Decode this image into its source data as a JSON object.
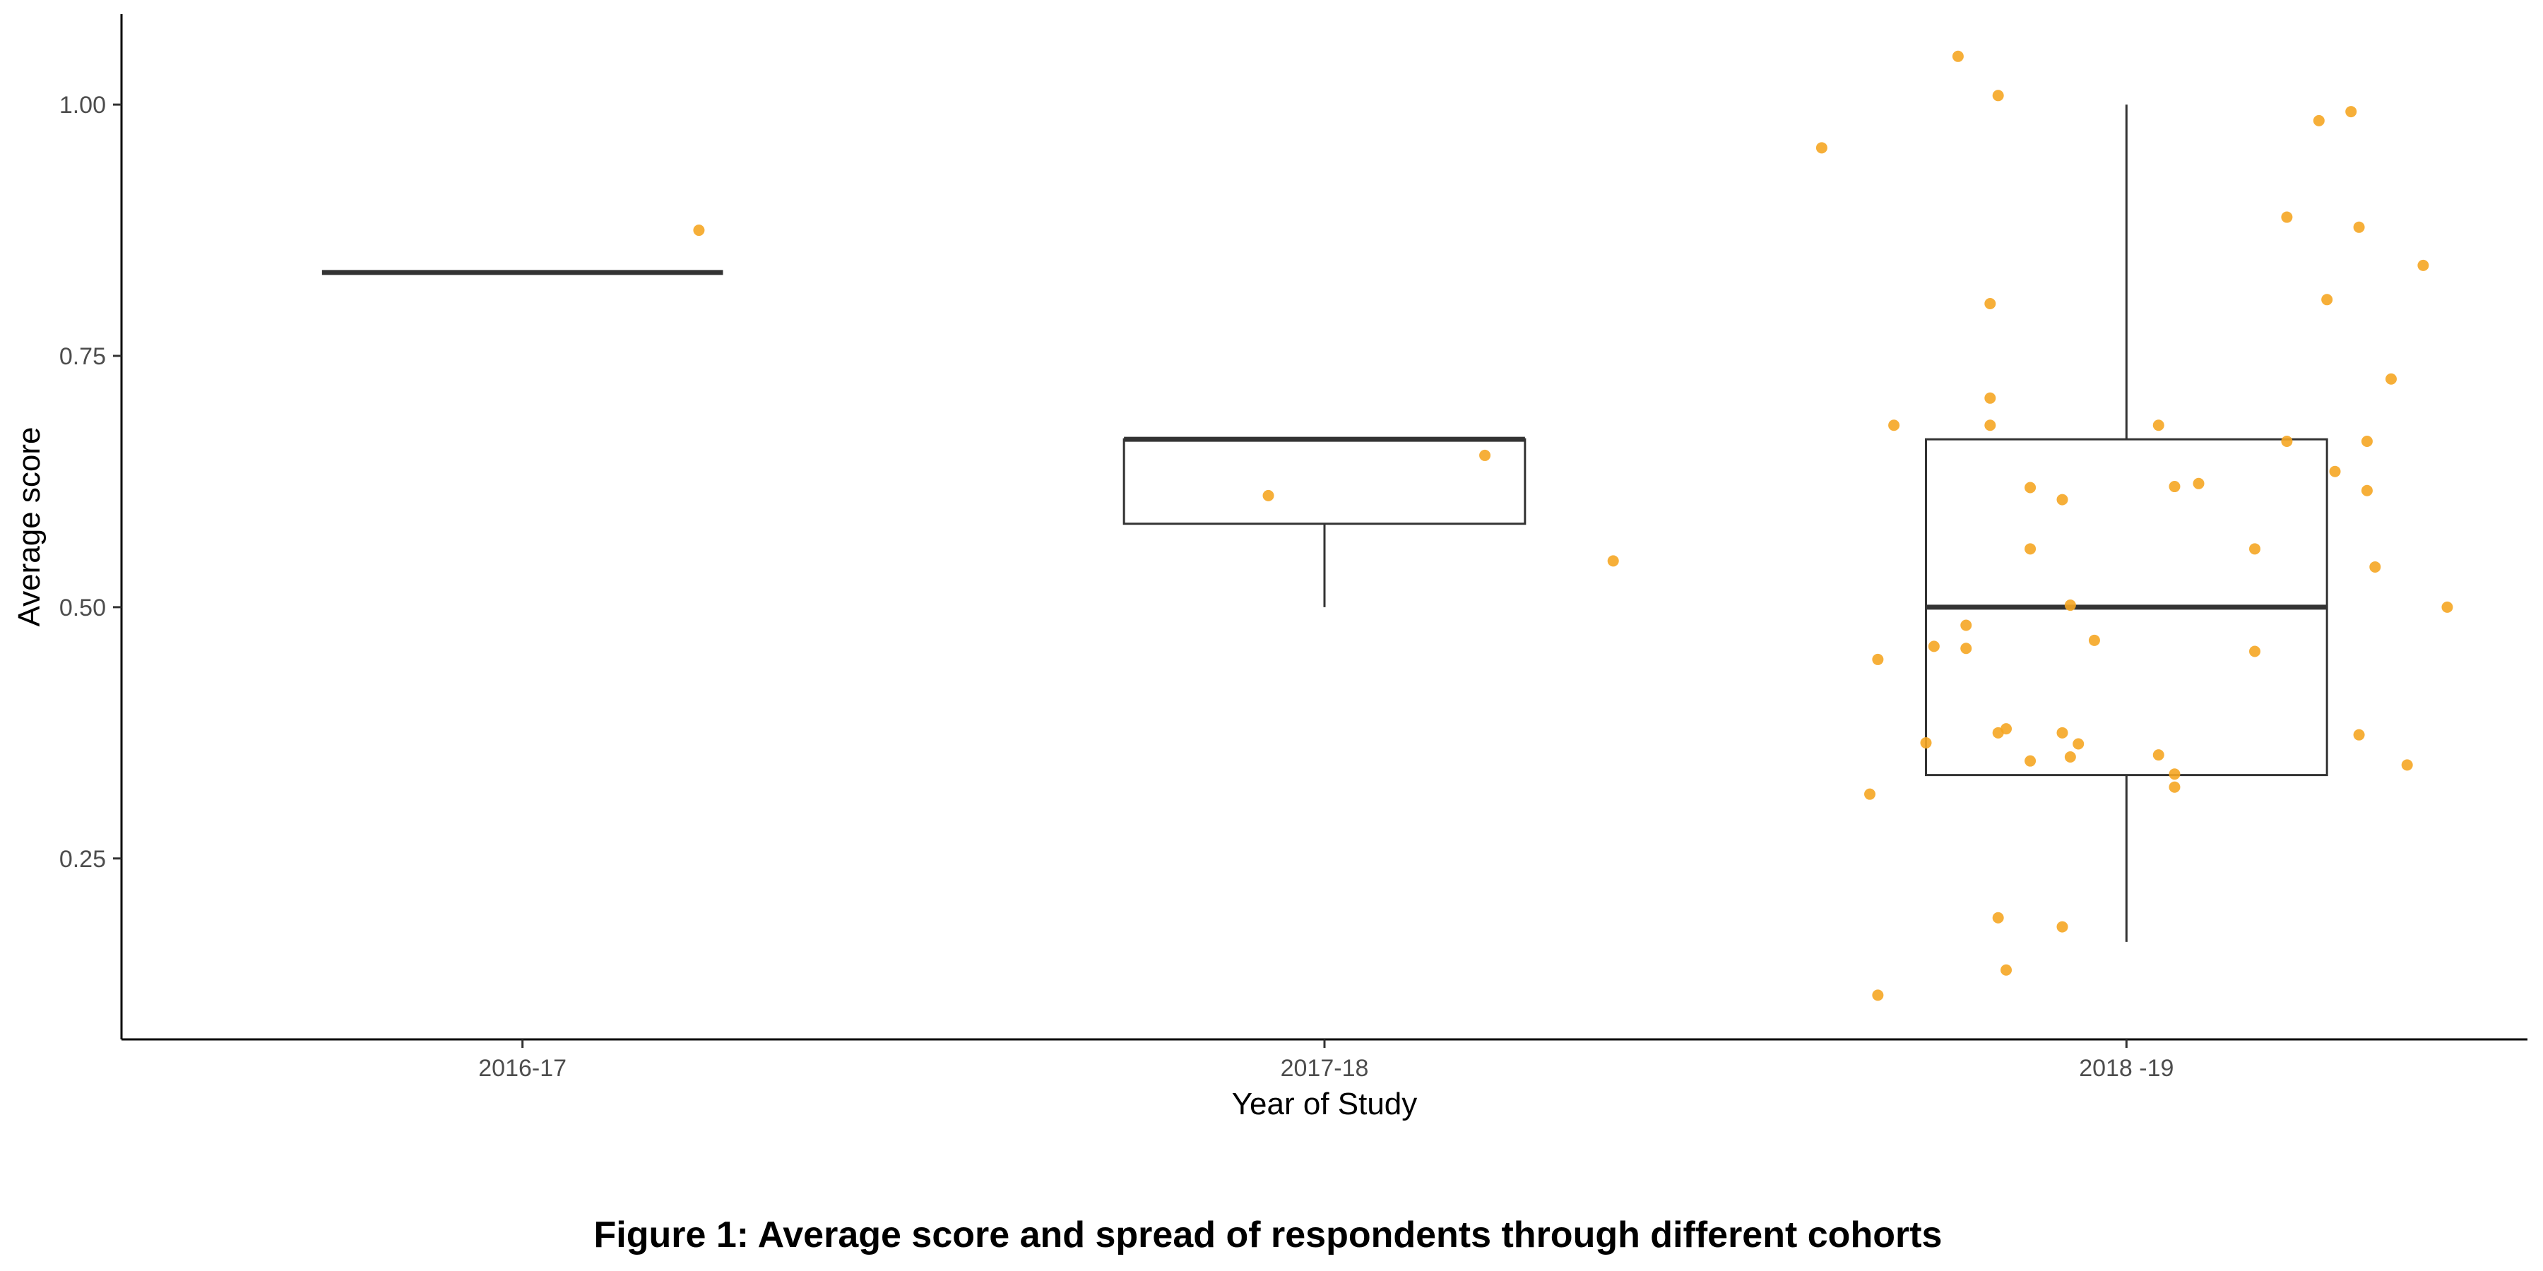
{
  "chart_data": {
    "type": "box",
    "title": "",
    "caption": "Figure 1: Average score and spread of respondents through different cohorts",
    "xlabel": "Year of Study",
    "ylabel": "Average score",
    "ylim": [
      0.07,
      1.09
    ],
    "y_ticks": [
      "0.25",
      "0.50",
      "0.75",
      "1.00"
    ],
    "categories": [
      "2016-17",
      "2017-18",
      "2018 -19"
    ],
    "grid": false,
    "boxes": [
      {
        "category": "2016-17",
        "min": 0.833,
        "q1": 0.833,
        "median": 0.833,
        "q3": 0.833,
        "max": 0.833
      },
      {
        "category": "2017-18",
        "min": 0.5,
        "q1": 0.583,
        "median": 0.667,
        "q3": 0.667,
        "max": 0.667
      },
      {
        "category": "2018 -19",
        "min": 0.167,
        "q1": 0.333,
        "median": 0.5,
        "q3": 0.667,
        "max": 1.0
      }
    ],
    "points": [
      {
        "category": "2016-17",
        "x_jitter": 0.22,
        "y": 0.875
      },
      {
        "category": "2017-18",
        "x_jitter": -0.07,
        "y": 0.611
      },
      {
        "category": "2017-18",
        "x_jitter": 0.2,
        "y": 0.651
      },
      {
        "category": "2017-18",
        "x_jitter": 0.36,
        "y": 0.546
      },
      {
        "category": "2018 -19",
        "x_jitter": -0.38,
        "y": 0.957
      },
      {
        "category": "2018 -19",
        "x_jitter": -0.21,
        "y": 1.048
      },
      {
        "category": "2018 -19",
        "x_jitter": -0.16,
        "y": 1.009
      },
      {
        "category": "2018 -19",
        "x_jitter": -0.17,
        "y": 0.802
      },
      {
        "category": "2018 -19",
        "x_jitter": -0.17,
        "y": 0.708
      },
      {
        "category": "2018 -19",
        "x_jitter": -0.29,
        "y": 0.681
      },
      {
        "category": "2018 -19",
        "x_jitter": -0.17,
        "y": 0.681
      },
      {
        "category": "2018 -19",
        "x_jitter": 0.04,
        "y": 0.681
      },
      {
        "category": "2018 -19",
        "x_jitter": 0.2,
        "y": 0.888
      },
      {
        "category": "2018 -19",
        "x_jitter": 0.24,
        "y": 0.984
      },
      {
        "category": "2018 -19",
        "x_jitter": 0.28,
        "y": 0.993
      },
      {
        "category": "2018 -19",
        "x_jitter": 0.29,
        "y": 0.878
      },
      {
        "category": "2018 -19",
        "x_jitter": 0.25,
        "y": 0.806
      },
      {
        "category": "2018 -19",
        "x_jitter": 0.37,
        "y": 0.84
      },
      {
        "category": "2018 -19",
        "x_jitter": 0.33,
        "y": 0.727
      },
      {
        "category": "2018 -19",
        "x_jitter": 0.2,
        "y": 0.665
      },
      {
        "category": "2018 -19",
        "x_jitter": 0.3,
        "y": 0.665
      },
      {
        "category": "2018 -19",
        "x_jitter": 0.26,
        "y": 0.635
      },
      {
        "category": "2018 -19",
        "x_jitter": 0.3,
        "y": 0.616
      },
      {
        "category": "2018 -19",
        "x_jitter": -0.12,
        "y": 0.619
      },
      {
        "category": "2018 -19",
        "x_jitter": -0.08,
        "y": 0.607
      },
      {
        "category": "2018 -19",
        "x_jitter": 0.06,
        "y": 0.62
      },
      {
        "category": "2018 -19",
        "x_jitter": 0.09,
        "y": 0.623
      },
      {
        "category": "2018 -19",
        "x_jitter": -0.12,
        "y": 0.558
      },
      {
        "category": "2018 -19",
        "x_jitter": 0.16,
        "y": 0.558
      },
      {
        "category": "2018 -19",
        "x_jitter": 0.31,
        "y": 0.54
      },
      {
        "category": "2018 -19",
        "x_jitter": -0.07,
        "y": 0.502
      },
      {
        "category": "2018 -19",
        "x_jitter": 0.4,
        "y": 0.5
      },
      {
        "category": "2018 -19",
        "x_jitter": -0.2,
        "y": 0.482
      },
      {
        "category": "2018 -19",
        "x_jitter": -0.04,
        "y": 0.467
      },
      {
        "category": "2018 -19",
        "x_jitter": -0.24,
        "y": 0.461
      },
      {
        "category": "2018 -19",
        "x_jitter": -0.2,
        "y": 0.459
      },
      {
        "category": "2018 -19",
        "x_jitter": -0.31,
        "y": 0.448
      },
      {
        "category": "2018 -19",
        "x_jitter": 0.16,
        "y": 0.456
      },
      {
        "category": "2018 -19",
        "x_jitter": -0.16,
        "y": 0.375
      },
      {
        "category": "2018 -19",
        "x_jitter": -0.15,
        "y": 0.379
      },
      {
        "category": "2018 -19",
        "x_jitter": -0.08,
        "y": 0.375
      },
      {
        "category": "2018 -19",
        "x_jitter": -0.06,
        "y": 0.364
      },
      {
        "category": "2018 -19",
        "x_jitter": -0.25,
        "y": 0.365
      },
      {
        "category": "2018 -19",
        "x_jitter": -0.12,
        "y": 0.347
      },
      {
        "category": "2018 -19",
        "x_jitter": -0.07,
        "y": 0.351
      },
      {
        "category": "2018 -19",
        "x_jitter": 0.04,
        "y": 0.353
      },
      {
        "category": "2018 -19",
        "x_jitter": 0.06,
        "y": 0.334
      },
      {
        "category": "2018 -19",
        "x_jitter": 0.06,
        "y": 0.321
      },
      {
        "category": "2018 -19",
        "x_jitter": 0.29,
        "y": 0.373
      },
      {
        "category": "2018 -19",
        "x_jitter": 0.35,
        "y": 0.343
      },
      {
        "category": "2018 -19",
        "x_jitter": -0.32,
        "y": 0.314
      },
      {
        "category": "2018 -19",
        "x_jitter": -0.16,
        "y": 0.191
      },
      {
        "category": "2018 -19",
        "x_jitter": -0.08,
        "y": 0.182
      },
      {
        "category": "2018 -19",
        "x_jitter": -0.15,
        "y": 0.139
      },
      {
        "category": "2018 -19",
        "x_jitter": -0.31,
        "y": 0.114
      }
    ]
  },
  "colors": {
    "point": "#f5a623",
    "box_stroke": "#333333",
    "axis": "#000000"
  }
}
